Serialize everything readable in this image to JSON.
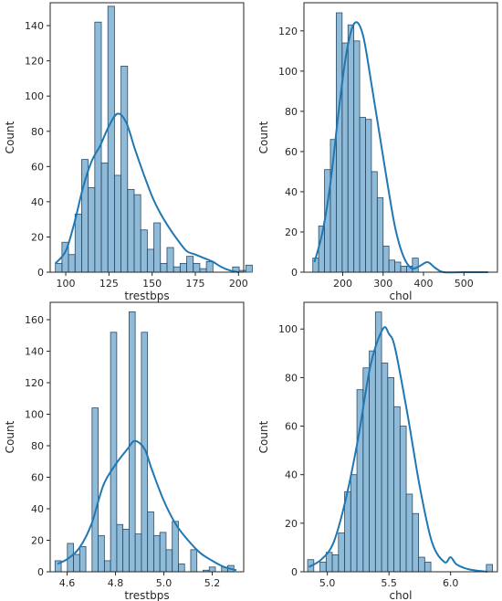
{
  "chart_data": [
    {
      "type": "histogram",
      "xlabel": "trestbps",
      "ylabel": "Count",
      "xlim": [
        91,
        203
      ],
      "ylim": [
        0,
        153
      ],
      "xticks": [
        100,
        125,
        150,
        175,
        200
      ],
      "yticks": [
        0,
        20,
        40,
        60,
        80,
        100,
        120,
        140
      ],
      "bins": {
        "start": 94,
        "width": 3.8
      },
      "counts": [
        5,
        17,
        10,
        33,
        64,
        48,
        142,
        62,
        151,
        55,
        117,
        47,
        44,
        24,
        13,
        28,
        5,
        14,
        3,
        5,
        9,
        5,
        2,
        6,
        0,
        0,
        0,
        3,
        1,
        4
      ],
      "kde": [
        [
          94,
          5
        ],
        [
          100,
          12
        ],
        [
          105,
          28
        ],
        [
          110,
          48
        ],
        [
          115,
          63
        ],
        [
          120,
          72
        ],
        [
          125,
          83
        ],
        [
          130,
          90
        ],
        [
          135,
          85
        ],
        [
          140,
          70
        ],
        [
          145,
          56
        ],
        [
          150,
          43
        ],
        [
          155,
          33
        ],
        [
          160,
          25
        ],
        [
          165,
          18
        ],
        [
          170,
          12
        ],
        [
          175,
          10
        ],
        [
          180,
          8
        ],
        [
          185,
          6
        ],
        [
          190,
          3
        ],
        [
          195,
          1
        ],
        [
          200,
          0
        ]
      ],
      "grid": false,
      "color": "#1f77b4"
    },
    {
      "type": "histogram",
      "xlabel": "chol",
      "ylabel": "Count",
      "xlim": [
        104,
        583
      ],
      "ylim": [
        0,
        134
      ],
      "xticks": [
        200,
        300,
        400,
        500
      ],
      "yticks": [
        0,
        20,
        40,
        60,
        80,
        100,
        120
      ],
      "bins": {
        "start": 126,
        "width": 14.5
      },
      "counts": [
        7,
        23,
        51,
        66,
        129,
        114,
        123,
        115,
        77,
        76,
        50,
        37,
        13,
        6,
        5,
        3,
        3,
        7,
        0,
        0,
        0,
        0,
        0,
        0,
        0,
        0,
        0,
        0,
        0,
        0
      ],
      "kde": [
        [
          130,
          5
        ],
        [
          150,
          20
        ],
        [
          170,
          45
        ],
        [
          190,
          80
        ],
        [
          210,
          110
        ],
        [
          230,
          124
        ],
        [
          250,
          118
        ],
        [
          270,
          95
        ],
        [
          290,
          70
        ],
        [
          310,
          45
        ],
        [
          330,
          22
        ],
        [
          350,
          8
        ],
        [
          370,
          2
        ],
        [
          390,
          3
        ],
        [
          410,
          5
        ],
        [
          430,
          2
        ],
        [
          450,
          0
        ],
        [
          500,
          0
        ],
        [
          560,
          0
        ]
      ],
      "grid": false,
      "color": "#1f77b4"
    },
    {
      "type": "histogram",
      "xlabel": "trestbps",
      "ylabel": "Count",
      "xlim": [
        4.53,
        5.33
      ],
      "ylim": [
        0,
        171
      ],
      "xticks": [
        4.6,
        4.8,
        5.0,
        5.2
      ],
      "yticks": [
        0,
        20,
        40,
        60,
        80,
        100,
        120,
        140,
        160
      ],
      "bins": {
        "start": 4.55,
        "width": 0.0255
      },
      "counts": [
        7,
        0,
        18,
        11,
        16,
        0,
        104,
        23,
        7,
        152,
        30,
        27,
        165,
        24,
        152,
        38,
        23,
        25,
        14,
        32,
        5,
        0,
        14,
        0,
        1,
        3,
        0,
        3,
        4,
        0
      ],
      "kde": [
        [
          4.56,
          5
        ],
        [
          4.6,
          8
        ],
        [
          4.65,
          15
        ],
        [
          4.7,
          30
        ],
        [
          4.75,
          55
        ],
        [
          4.8,
          68
        ],
        [
          4.85,
          78
        ],
        [
          4.88,
          83
        ],
        [
          4.92,
          78
        ],
        [
          4.95,
          65
        ],
        [
          5.0,
          45
        ],
        [
          5.05,
          30
        ],
        [
          5.1,
          20
        ],
        [
          5.15,
          12
        ],
        [
          5.2,
          7
        ],
        [
          5.25,
          3
        ],
        [
          5.3,
          1
        ]
      ],
      "grid": false,
      "color": "#1f77b4"
    },
    {
      "type": "histogram",
      "xlabel": "chol",
      "ylabel": "Count",
      "xlim": [
        4.81,
        6.38
      ],
      "ylim": [
        0,
        111
      ],
      "xticks": [
        5.0,
        5.5,
        6.0
      ],
      "yticks": [
        0,
        20,
        40,
        60,
        80,
        100
      ],
      "bins": {
        "start": 4.84,
        "width": 0.05
      },
      "counts": [
        5,
        0,
        4,
        8,
        7,
        16,
        33,
        40,
        75,
        84,
        91,
        107,
        86,
        80,
        68,
        60,
        32,
        24,
        6,
        4,
        0,
        0,
        0,
        0,
        0,
        0,
        0,
        0,
        0,
        3
      ],
      "kde": [
        [
          4.85,
          2
        ],
        [
          4.95,
          5
        ],
        [
          5.05,
          12
        ],
        [
          5.15,
          30
        ],
        [
          5.25,
          55
        ],
        [
          5.35,
          85
        ],
        [
          5.45,
          100
        ],
        [
          5.5,
          98
        ],
        [
          5.55,
          92
        ],
        [
          5.65,
          65
        ],
        [
          5.75,
          35
        ],
        [
          5.85,
          12
        ],
        [
          5.95,
          4
        ],
        [
          6.0,
          6
        ],
        [
          6.05,
          3
        ],
        [
          6.15,
          1
        ],
        [
          6.3,
          0
        ]
      ],
      "grid": false,
      "color": "#1f77b4"
    }
  ]
}
